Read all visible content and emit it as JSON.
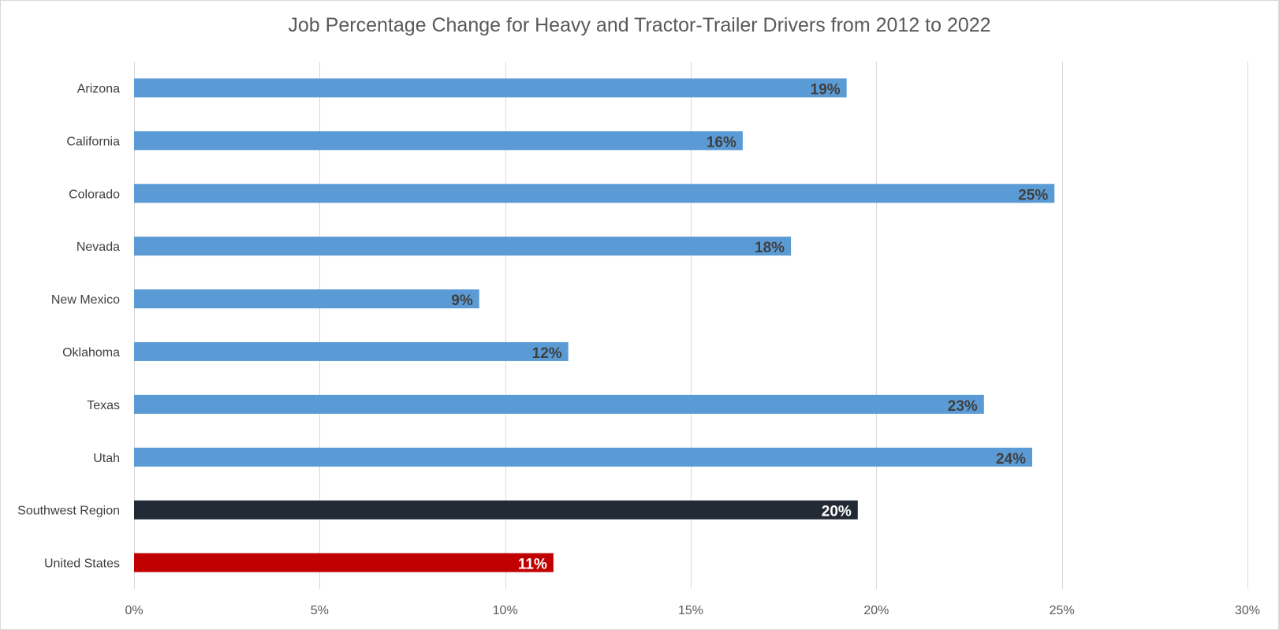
{
  "chart_data": {
    "type": "bar",
    "orientation": "horizontal",
    "title": "Job Percentage Change for Heavy and Tractor-Trailer Drivers from 2012 to 2022",
    "categories": [
      "Arizona",
      "California",
      "Colorado",
      "Nevada",
      "New Mexico",
      "Oklahoma",
      "Texas",
      "Utah",
      "Southwest Region",
      "United States"
    ],
    "values": [
      19.2,
      16.4,
      24.8,
      17.7,
      9.3,
      11.7,
      22.9,
      24.2,
      19.5,
      11.3
    ],
    "data_labels": [
      "19%",
      "16%",
      "25%",
      "18%",
      "9%",
      "12%",
      "23%",
      "24%",
      "20%",
      "11%"
    ],
    "bar_colors": [
      "#5b9bd5",
      "#5b9bd5",
      "#5b9bd5",
      "#5b9bd5",
      "#5b9bd5",
      "#5b9bd5",
      "#5b9bd5",
      "#5b9bd5",
      "#222a35",
      "#c00000"
    ],
    "label_colors": [
      "#404040",
      "#404040",
      "#404040",
      "#404040",
      "#404040",
      "#404040",
      "#404040",
      "#404040",
      "#ffffff",
      "#ffffff"
    ],
    "xlim": [
      0,
      30
    ],
    "xticks": [
      0,
      5,
      10,
      15,
      20,
      25,
      30
    ],
    "xtick_labels": [
      "0%",
      "5%",
      "10%",
      "15%",
      "20%",
      "25%",
      "30%"
    ],
    "xlabel": "",
    "ylabel": "",
    "grid": true,
    "legend": "none"
  }
}
